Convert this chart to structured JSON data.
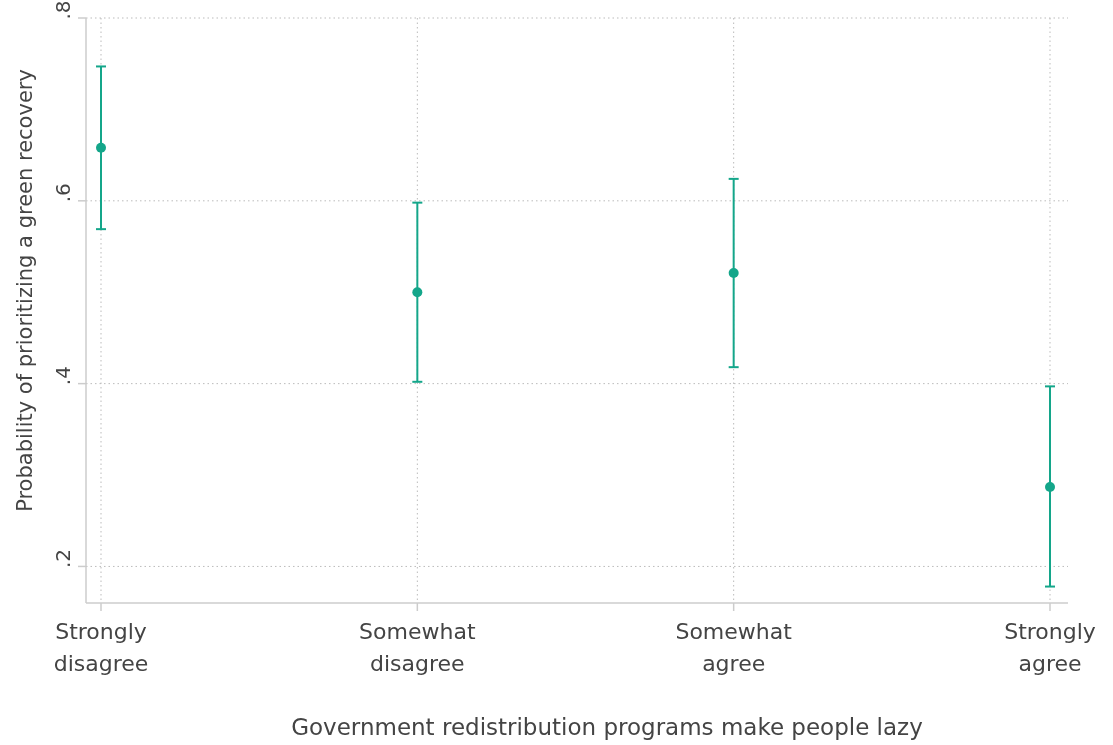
{
  "chart_data": {
    "type": "scatter",
    "xlabel": "Government redistribution programs make people lazy",
    "ylabel": "Probability of prioritizing a green recovery",
    "categories": [
      "Strongly disagree",
      "Somewhat disagree",
      "Somewhat agree",
      "Strongly agree"
    ],
    "values": [
      0.658,
      0.5,
      0.521,
      0.287
    ],
    "errors": [
      [
        0.569,
        0.747
      ],
      [
        0.402,
        0.598
      ],
      [
        0.418,
        0.624
      ],
      [
        0.178,
        0.397
      ]
    ],
    "color": "#14a68a",
    "marker": "circle",
    "ylim": [
      0.16,
      0.8
    ],
    "yticks": [
      {
        "value": 0.2,
        "label": ".2"
      },
      {
        "value": 0.4,
        "label": ".4"
      },
      {
        "value": 0.6,
        "label": ".6"
      },
      {
        "value": 0.8,
        "label": ".8"
      }
    ],
    "grid": true
  }
}
